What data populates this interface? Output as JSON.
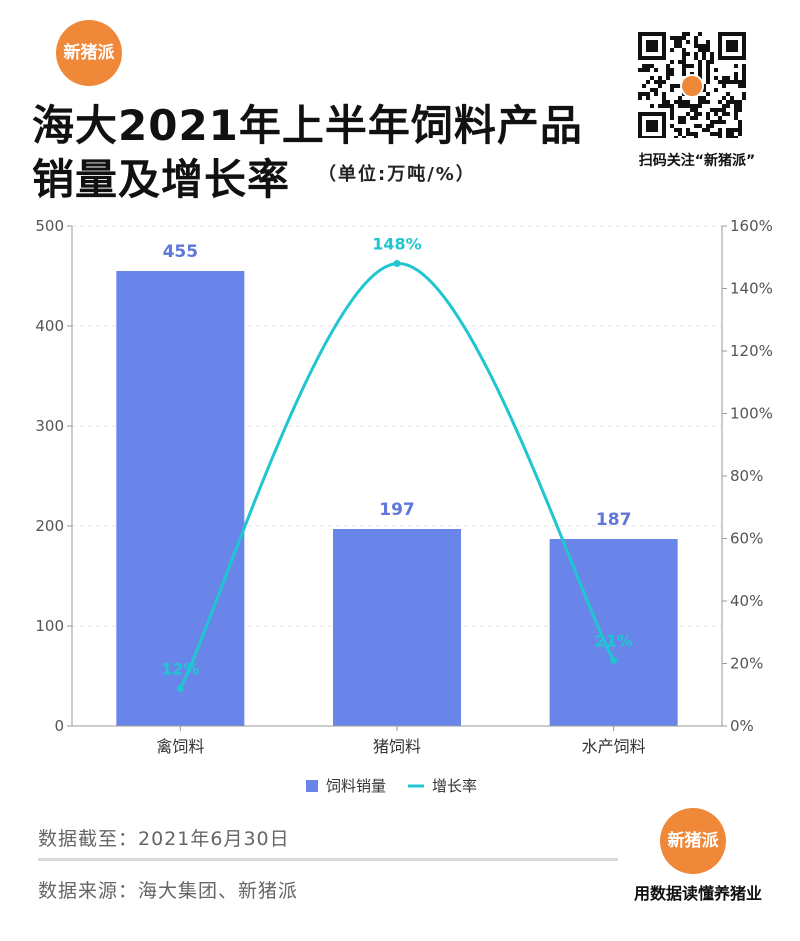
{
  "brand": {
    "logo_text": "新猪派",
    "qr_caption": "扫码关注“新猪派”",
    "slogan": "用数据读懂养猪业",
    "accent_color": "#f0883a"
  },
  "title": {
    "line1": "海大2021年上半年饲料产品",
    "line2": "销量及增长率",
    "unit": "（单位:万吨/%）"
  },
  "chart_data": {
    "type": "bar",
    "categories": [
      "禽饲料",
      "猪饲料",
      "水产饲料"
    ],
    "series": [
      {
        "name": "饲料销量",
        "type": "bar",
        "axis": "left",
        "color": "#6a85ea",
        "values": [
          455,
          197,
          187
        ],
        "labels": [
          "455",
          "197",
          "187"
        ]
      },
      {
        "name": "增长率",
        "type": "line",
        "axis": "right",
        "color": "#1fc6cf",
        "values": [
          12,
          148,
          21
        ],
        "labels": [
          "12%",
          "148%",
          "21%"
        ]
      }
    ],
    "y_left": {
      "min": 0,
      "max": 500,
      "ticks": [
        "0",
        "100",
        "200",
        "300",
        "400",
        "500"
      ]
    },
    "y_right": {
      "min": 0,
      "max": 160,
      "ticks": [
        "0%",
        "20%",
        "40%",
        "60%",
        "80%",
        "100%",
        "120%",
        "140%",
        "160%"
      ]
    },
    "grid": true,
    "legend_position": "bottom-center"
  },
  "footer": {
    "date": "数据截至：2021年6月30日",
    "source": "数据来源：海大集团、新猪派"
  }
}
